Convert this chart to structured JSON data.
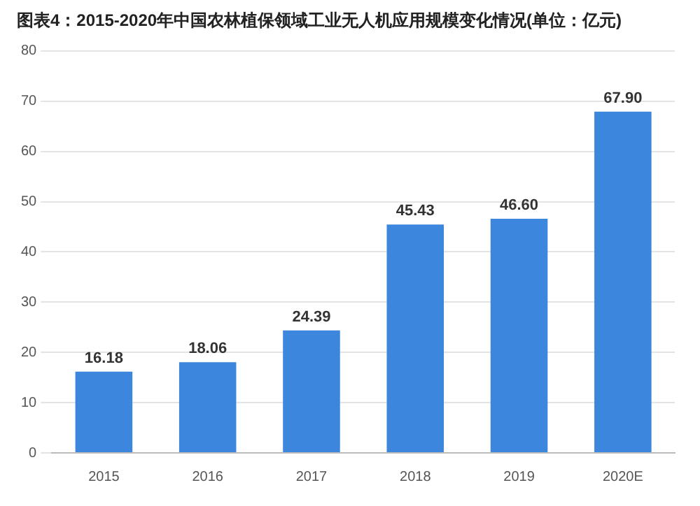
{
  "chart_data": {
    "type": "bar",
    "title": "图表4：2015-2020年中国农林植保领域工业无人机应用规模变化情况(单位：亿元)",
    "categories": [
      "2015",
      "2016",
      "2017",
      "2018",
      "2019",
      "2020E"
    ],
    "values": [
      16.18,
      18.06,
      24.39,
      45.43,
      46.6,
      67.9
    ],
    "value_labels": [
      "16.18",
      "18.06",
      "24.39",
      "45.43",
      "46.60",
      "67.90"
    ],
    "color": "#3c86de",
    "ylim": [
      0,
      80
    ],
    "yticks": [
      0,
      10,
      20,
      30,
      40,
      50,
      60,
      70,
      80
    ],
    "grid": "y"
  }
}
